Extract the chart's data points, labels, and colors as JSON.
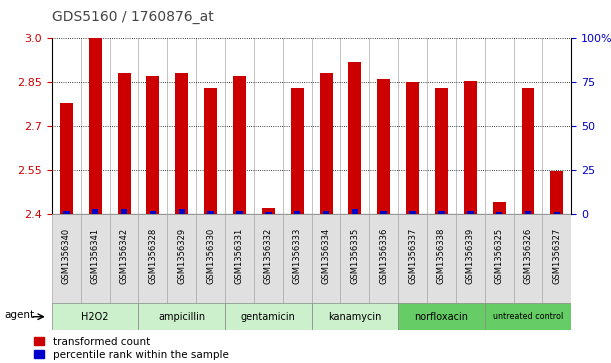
{
  "title": "GDS5160 / 1760876_at",
  "samples": [
    "GSM1356340",
    "GSM1356341",
    "GSM1356342",
    "GSM1356328",
    "GSM1356329",
    "GSM1356330",
    "GSM1356331",
    "GSM1356332",
    "GSM1356333",
    "GSM1356334",
    "GSM1356335",
    "GSM1356336",
    "GSM1356337",
    "GSM1356338",
    "GSM1356339",
    "GSM1356325",
    "GSM1356326",
    "GSM1356327"
  ],
  "transformed_count": [
    2.78,
    3.0,
    2.88,
    2.87,
    2.88,
    2.83,
    2.87,
    2.42,
    2.83,
    2.88,
    2.92,
    2.86,
    2.85,
    2.83,
    2.855,
    2.44,
    2.83,
    2.547
  ],
  "percentile_rank": [
    2,
    3,
    3,
    2,
    3,
    2,
    2,
    1,
    2,
    2,
    3,
    2,
    2,
    2,
    2,
    1,
    2,
    1
  ],
  "groups": [
    {
      "label": "H2O2",
      "start": 0,
      "end": 3,
      "light": true
    },
    {
      "label": "ampicillin",
      "start": 3,
      "end": 6,
      "light": true
    },
    {
      "label": "gentamicin",
      "start": 6,
      "end": 9,
      "light": true
    },
    {
      "label": "kanamycin",
      "start": 9,
      "end": 12,
      "light": true
    },
    {
      "label": "norfloxacin",
      "start": 12,
      "end": 15,
      "light": false
    },
    {
      "label": "untreated control",
      "start": 15,
      "end": 18,
      "light": false
    }
  ],
  "ylim_left": [
    2.4,
    3.0
  ],
  "ylim_right": [
    0,
    100
  ],
  "yticks_left": [
    2.4,
    2.55,
    2.7,
    2.85,
    3.0
  ],
  "yticks_right": [
    0,
    25,
    50,
    75,
    100
  ],
  "bar_color": "#cc0000",
  "blue_color": "#0000cc",
  "title_color": "#444444",
  "left_tick_color": "#cc0000",
  "right_tick_color": "#0000cc",
  "group_color_light": "#ccf0cc",
  "group_color_dark": "#66cc66",
  "agent_label": "agent",
  "legend_red": "transformed count",
  "legend_blue": "percentile rank within the sample"
}
